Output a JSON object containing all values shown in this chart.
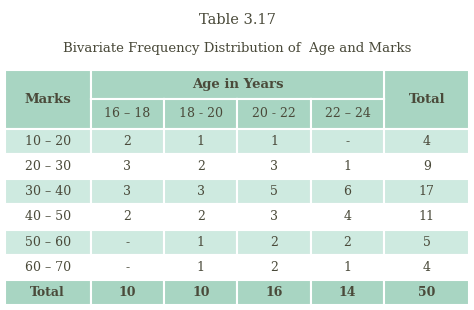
{
  "title": "Table 3.17",
  "subtitle": "Bivariate Frequency Distribution of  Age and Marks",
  "header_bg": "#a8d5c2",
  "data_row_bg_light": "#ceeae0",
  "data_row_bg_white": "#ffffff",
  "outer_bg": "#ffffff",
  "table_outer_bg": "#b8ddd0",
  "col_header_label": "Age in Years",
  "col_subheaders": [
    "16 – 18",
    "18 - 20",
    "20 - 22",
    "22 – 24"
  ],
  "row_header_label": "Marks",
  "total_label": "Total",
  "row_labels": [
    "10 – 20",
    "20 – 30",
    "30 – 40",
    "40 – 50",
    "50 – 60",
    "60 – 70"
  ],
  "data": [
    [
      "2",
      "1",
      "1",
      "-",
      "4"
    ],
    [
      "3",
      "2",
      "3",
      "1",
      "9"
    ],
    [
      "3",
      "3",
      "5",
      "6",
      "17"
    ],
    [
      "2",
      "2",
      "3",
      "4",
      "11"
    ],
    [
      "-",
      "1",
      "2",
      "2",
      "5"
    ],
    [
      "-",
      "1",
      "2",
      "1",
      "4"
    ]
  ],
  "totals": [
    "10",
    "10",
    "16",
    "14",
    "50"
  ],
  "text_color": "#4a4a3a",
  "border_color": "#ffffff",
  "title_fontsize": 10.5,
  "subtitle_fontsize": 9.5,
  "cell_fontsize": 9,
  "header_fontsize": 9.5
}
